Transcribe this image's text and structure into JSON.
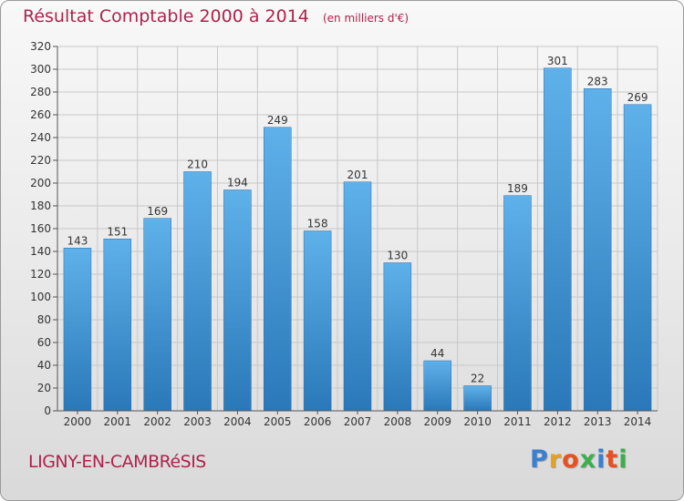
{
  "header": {
    "title": "Résultat Comptable 2000 à 2014",
    "subtitle": "(en milliers d'€)"
  },
  "footer": {
    "commune": "LIGNY-EN-CAMBRéSIS",
    "logo_text": "Proxiti",
    "logo_colors": [
      "#3a7fd0",
      "#e8a020",
      "#e85020",
      "#3ab04a",
      "#3a7fd0",
      "#e85020",
      "#3ab04a"
    ]
  },
  "colors": {
    "title": "#b0224d",
    "bar_top": "#5fb1ea",
    "bar_bottom": "#2a78b8",
    "grid": "#c8c8c8",
    "axis_text": "#333333"
  },
  "chart_data": {
    "type": "bar",
    "title": "Résultat Comptable 2000 à 2014",
    "subtitle": "(en milliers d'€)",
    "categories": [
      "2000",
      "2001",
      "2002",
      "2003",
      "2004",
      "2005",
      "2006",
      "2007",
      "2008",
      "2009",
      "2010",
      "2011",
      "2012",
      "2013",
      "2014"
    ],
    "values": [
      143,
      151,
      169,
      210,
      194,
      249,
      158,
      201,
      130,
      44,
      22,
      189,
      301,
      283,
      269
    ],
    "ylim": [
      0,
      320
    ],
    "yticks": [
      0,
      20,
      40,
      60,
      80,
      100,
      120,
      140,
      160,
      180,
      200,
      220,
      240,
      260,
      280,
      300,
      320
    ],
    "grid": true,
    "xlabel": "",
    "ylabel": ""
  }
}
